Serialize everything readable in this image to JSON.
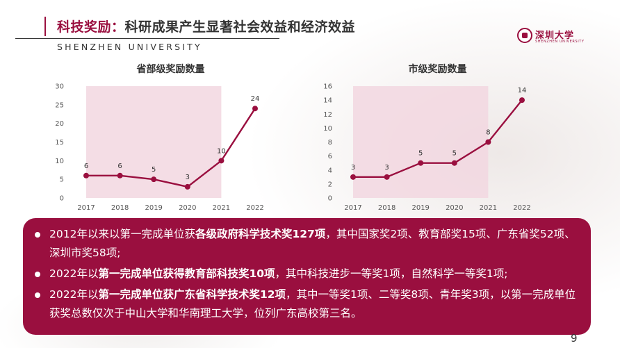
{
  "header": {
    "title_prefix": "科技奖励：",
    "title_main": "科研成果产生显著社会效益和经济效益",
    "subtitle": "SHENZHEN UNIVERSITY",
    "logo_cn": "深圳大学",
    "logo_en": "SHENZHEN UNIVERSITY"
  },
  "chart_data": [
    {
      "type": "line",
      "title": "省部级奖励数量",
      "x": [
        "2017",
        "2018",
        "2019",
        "2020",
        "2021",
        "2022"
      ],
      "values": [
        6,
        6,
        5,
        3,
        10,
        24
      ],
      "yticks": [
        "0",
        "5",
        "10",
        "15",
        "20",
        "25",
        "30"
      ],
      "ylim": [
        0,
        30
      ],
      "highlight_range": [
        "2017",
        "2021"
      ],
      "grid": false
    },
    {
      "type": "line",
      "title": "市级奖励数量",
      "x": [
        "2017",
        "2018",
        "2019",
        "2020",
        "2021",
        "2022"
      ],
      "values": [
        3,
        3,
        5,
        5,
        8,
        14
      ],
      "yticks": [
        "0",
        "2",
        "4",
        "6",
        "8",
        "10",
        "12",
        "14",
        "16"
      ],
      "ylim": [
        0,
        16
      ],
      "highlight_range": [
        "2017",
        "2021"
      ],
      "grid": false
    }
  ],
  "colors": {
    "accent": "#9a0f3f",
    "highlight": "#f2d7e0"
  },
  "bullets": [
    {
      "a": "2012年以来以第一完成单位获",
      "b": "各级政府科学技术奖127项",
      "c": "，其中国家奖2项、教育部奖15项、广东省奖52项、深圳市奖58项;"
    },
    {
      "a": "2022年以",
      "b": "第一完成单位获得教育部科技奖10项",
      "c": "，其中科技进步一等奖1项，自然科学一等奖1项;"
    },
    {
      "a": "2022年以",
      "b": "第一完成单位获广东省科学技术奖12项",
      "c": "，其中一等奖1项、二等奖8项、青年奖3项，以第一完成单位获奖总数仅次于中山大学和华南理工大学，位列广东高校第三名。"
    }
  ],
  "page_number": "9"
}
